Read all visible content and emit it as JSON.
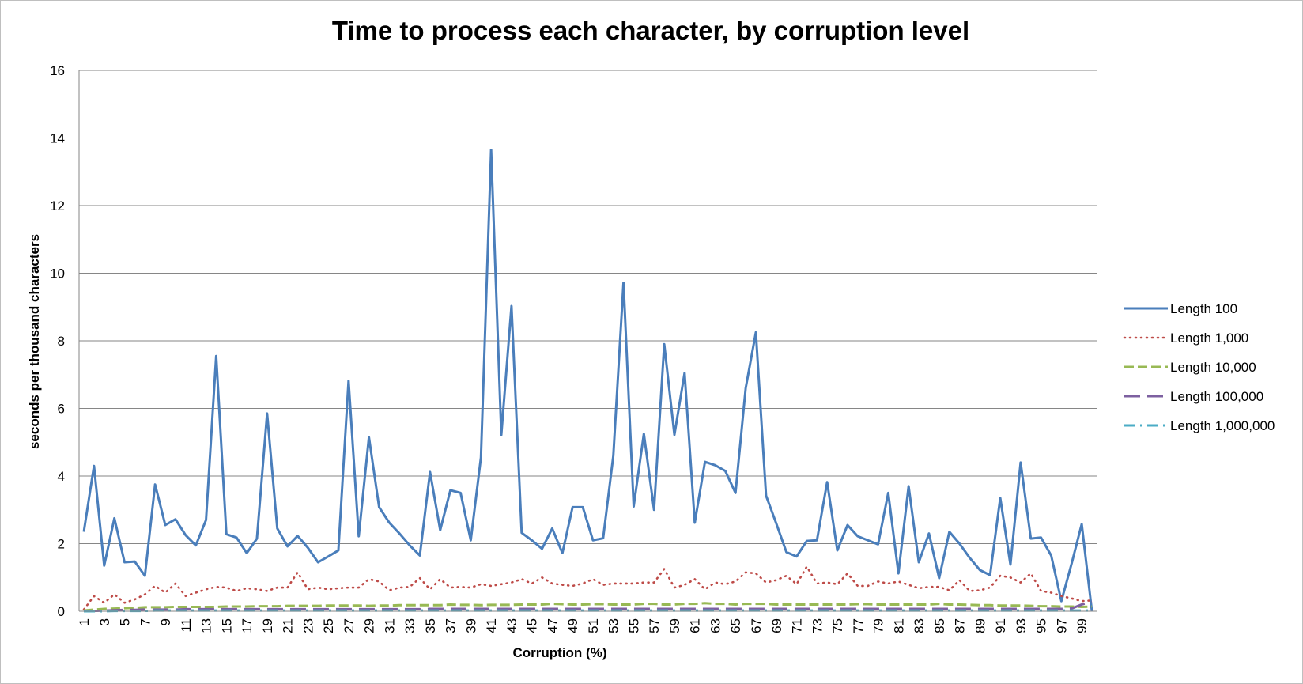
{
  "chart_data": {
    "type": "line",
    "title": "Time to process each character, by corruption level",
    "xlabel": "Corruption  (%)",
    "ylabel": "seconds per thousand characters",
    "ylim": [
      0,
      16
    ],
    "yticks": [
      0,
      2,
      4,
      6,
      8,
      10,
      12,
      14,
      16
    ],
    "x": [
      1,
      2,
      3,
      4,
      5,
      6,
      7,
      8,
      9,
      10,
      11,
      12,
      13,
      14,
      15,
      16,
      17,
      18,
      19,
      20,
      21,
      22,
      23,
      24,
      25,
      26,
      27,
      28,
      29,
      30,
      31,
      32,
      33,
      34,
      35,
      36,
      37,
      38,
      39,
      40,
      41,
      42,
      43,
      44,
      45,
      46,
      47,
      48,
      49,
      50,
      51,
      52,
      53,
      54,
      55,
      56,
      57,
      58,
      59,
      60,
      61,
      62,
      63,
      64,
      65,
      66,
      67,
      68,
      69,
      70,
      71,
      72,
      73,
      74,
      75,
      76,
      77,
      78,
      79,
      80,
      81,
      82,
      83,
      84,
      85,
      86,
      87,
      88,
      89,
      90,
      91,
      92,
      93,
      94,
      95,
      96,
      97,
      98,
      99,
      100
    ],
    "xtick_labels": [
      "1",
      "3",
      "5",
      "7",
      "9",
      "11",
      "13",
      "15",
      "17",
      "19",
      "21",
      "23",
      "25",
      "27",
      "29",
      "31",
      "33",
      "35",
      "37",
      "39",
      "41",
      "43",
      "45",
      "47",
      "49",
      "51",
      "53",
      "55",
      "57",
      "59",
      "61",
      "63",
      "65",
      "67",
      "69",
      "71",
      "73",
      "75",
      "77",
      "79",
      "81",
      "83",
      "85",
      "87",
      "89",
      "91",
      "93",
      "95",
      "97",
      "99"
    ],
    "grid": true,
    "legend_position": "right",
    "series": [
      {
        "name": "Length 100",
        "color": "#4a7ebb",
        "style": "solid",
        "values": [
          2.35,
          4.3,
          1.35,
          2.75,
          1.45,
          1.47,
          1.05,
          3.75,
          2.55,
          2.72,
          2.25,
          1.95,
          2.7,
          7.55,
          2.28,
          2.18,
          1.72,
          2.15,
          5.85,
          2.45,
          1.92,
          2.23,
          1.88,
          1.45,
          1.62,
          1.8,
          6.82,
          2.22,
          5.15,
          3.08,
          2.62,
          2.3,
          1.95,
          1.65,
          4.12,
          2.4,
          3.58,
          3.5,
          2.1,
          4.55,
          13.65,
          5.22,
          9.03,
          2.32,
          2.1,
          1.85,
          2.45,
          1.72,
          3.08,
          3.08,
          2.1,
          2.16,
          4.6,
          9.72,
          3.1,
          5.25,
          3.0,
          7.9,
          5.22,
          7.05,
          2.62,
          4.42,
          4.32,
          4.15,
          3.5,
          6.6,
          8.25,
          3.42,
          2.6,
          1.75,
          1.62,
          2.08,
          2.1,
          3.82,
          1.8,
          2.55,
          2.22,
          2.1,
          1.98,
          3.5,
          1.12,
          3.7,
          1.45,
          2.3,
          0.98,
          2.35,
          2.0,
          1.58,
          1.22,
          1.07,
          3.35,
          1.38,
          4.4,
          2.15,
          2.18,
          1.65,
          0.3,
          1.4,
          2.58,
          0.0
        ]
      },
      {
        "name": "Length 1,000",
        "color": "#be4b48",
        "style": "dotted",
        "values": [
          0.05,
          0.45,
          0.25,
          0.5,
          0.25,
          0.35,
          0.5,
          0.75,
          0.55,
          0.82,
          0.45,
          0.55,
          0.65,
          0.72,
          0.7,
          0.6,
          0.68,
          0.65,
          0.6,
          0.7,
          0.7,
          1.15,
          0.65,
          0.7,
          0.65,
          0.68,
          0.7,
          0.7,
          0.95,
          0.88,
          0.62,
          0.7,
          0.72,
          0.98,
          0.65,
          0.95,
          0.7,
          0.72,
          0.7,
          0.8,
          0.75,
          0.8,
          0.85,
          0.95,
          0.82,
          1.0,
          0.82,
          0.78,
          0.75,
          0.82,
          0.95,
          0.78,
          0.82,
          0.82,
          0.82,
          0.85,
          0.85,
          1.25,
          0.7,
          0.78,
          0.95,
          0.65,
          0.85,
          0.8,
          0.88,
          1.15,
          1.12,
          0.85,
          0.92,
          1.05,
          0.8,
          1.32,
          0.82,
          0.85,
          0.8,
          1.12,
          0.75,
          0.75,
          0.88,
          0.82,
          0.88,
          0.78,
          0.68,
          0.72,
          0.72,
          0.62,
          0.92,
          0.6,
          0.62,
          0.7,
          1.05,
          1.0,
          0.85,
          1.12,
          0.6,
          0.55,
          0.45,
          0.38,
          0.3,
          0.32
        ]
      },
      {
        "name": "Length 10,000",
        "color": "#98b954",
        "style": "dashed",
        "values": [
          0.02,
          0.05,
          0.07,
          0.08,
          0.09,
          0.1,
          0.12,
          0.12,
          0.12,
          0.13,
          0.13,
          0.13,
          0.13,
          0.13,
          0.14,
          0.14,
          0.14,
          0.15,
          0.15,
          0.15,
          0.16,
          0.16,
          0.16,
          0.16,
          0.17,
          0.17,
          0.17,
          0.17,
          0.16,
          0.17,
          0.17,
          0.18,
          0.18,
          0.18,
          0.18,
          0.18,
          0.2,
          0.19,
          0.19,
          0.18,
          0.19,
          0.19,
          0.19,
          0.2,
          0.2,
          0.2,
          0.22,
          0.21,
          0.2,
          0.2,
          0.21,
          0.21,
          0.2,
          0.2,
          0.2,
          0.22,
          0.22,
          0.2,
          0.2,
          0.22,
          0.22,
          0.24,
          0.22,
          0.22,
          0.2,
          0.22,
          0.22,
          0.22,
          0.2,
          0.2,
          0.2,
          0.2,
          0.2,
          0.2,
          0.2,
          0.2,
          0.21,
          0.21,
          0.2,
          0.2,
          0.2,
          0.2,
          0.2,
          0.2,
          0.22,
          0.2,
          0.2,
          0.19,
          0.18,
          0.18,
          0.17,
          0.17,
          0.17,
          0.16,
          0.15,
          0.15,
          0.14,
          0.14,
          0.13,
          0.14
        ]
      },
      {
        "name": "Length 100,000",
        "color": "#7d60a0",
        "style": "longdash",
        "values": [
          0.0,
          0.01,
          0.02,
          0.03,
          0.04,
          0.04,
          0.05,
          0.05,
          0.05,
          0.05,
          0.06,
          0.06,
          0.06,
          0.06,
          0.06,
          0.06,
          0.06,
          0.06,
          0.06,
          0.06,
          0.06,
          0.06,
          0.06,
          0.06,
          0.06,
          0.06,
          0.06,
          0.06,
          0.06,
          0.06,
          0.06,
          0.06,
          0.06,
          0.06,
          0.07,
          0.07,
          0.07,
          0.07,
          0.07,
          0.07,
          0.07,
          0.07,
          0.07,
          0.07,
          0.07,
          0.07,
          0.07,
          0.07,
          0.07,
          0.07,
          0.07,
          0.07,
          0.07,
          0.07,
          0.07,
          0.07,
          0.07,
          0.07,
          0.07,
          0.07,
          0.07,
          0.07,
          0.07,
          0.07,
          0.07,
          0.07,
          0.07,
          0.07,
          0.07,
          0.07,
          0.07,
          0.07,
          0.07,
          0.07,
          0.07,
          0.07,
          0.07,
          0.07,
          0.07,
          0.07,
          0.07,
          0.07,
          0.07,
          0.07,
          0.07,
          0.07,
          0.07,
          0.07,
          0.07,
          0.07,
          0.07,
          0.07,
          0.07,
          0.07,
          0.07,
          0.07,
          0.07,
          0.08,
          0.2,
          0.28
        ]
      },
      {
        "name": "Length 1,000,000",
        "color": "#4bacc6",
        "style": "dashdot",
        "values": [
          0.0,
          0.0,
          0.0,
          0.01,
          0.01,
          0.01,
          0.01,
          0.02,
          0.02,
          0.02,
          0.02,
          0.02,
          0.02,
          0.02,
          0.02,
          0.02,
          0.02,
          0.02,
          0.02,
          0.02,
          0.02,
          0.02,
          0.02,
          0.02,
          0.02,
          0.02,
          0.02,
          0.02,
          0.02,
          0.02,
          0.02,
          0.02,
          0.02,
          0.02,
          0.02,
          0.02,
          0.02,
          0.02,
          0.02,
          0.02,
          0.02,
          0.02,
          0.02,
          0.02,
          0.02,
          0.02,
          0.02,
          0.02,
          0.02,
          0.02,
          0.02,
          0.02,
          0.02,
          0.02,
          0.02,
          0.02,
          0.02,
          0.02,
          0.02,
          0.02,
          0.02,
          0.02,
          0.02,
          0.02,
          0.02,
          0.02,
          0.02,
          0.02,
          0.02,
          0.02,
          0.02,
          0.02,
          0.02,
          0.02,
          0.02,
          0.02,
          0.02,
          0.02,
          0.02,
          0.02,
          0.02,
          0.02,
          0.02,
          0.02,
          0.02,
          0.02,
          0.02,
          0.02,
          0.02,
          0.02,
          0.02,
          0.02,
          0.02,
          0.02,
          0.02,
          0.02,
          0.02,
          0.02,
          0.02,
          0.02
        ]
      }
    ]
  }
}
